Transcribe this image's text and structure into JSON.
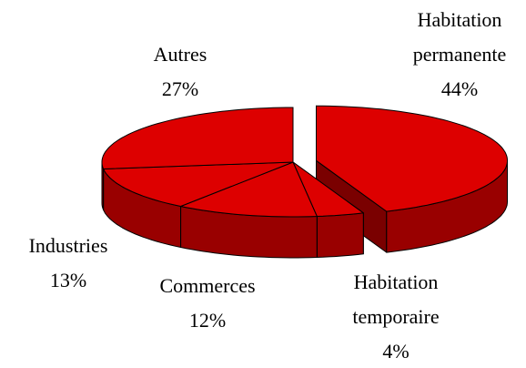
{
  "chart_data": {
    "type": "pie",
    "three_d": true,
    "exploded": [
      0
    ],
    "categories": [
      "Habitation permanente",
      "Habitation temporaire",
      "Commerces",
      "Industries",
      "Autres"
    ],
    "values": [
      44,
      4,
      12,
      13,
      27
    ],
    "value_labels": [
      "44%",
      "4%",
      "12%",
      "13%",
      "27%"
    ],
    "color": "#dd0000"
  }
}
